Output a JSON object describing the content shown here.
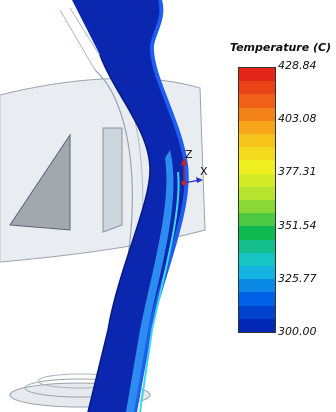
{
  "legend": {
    "title": "Temperature (C)",
    "ticks": [
      "428.84",
      "403.08",
      "377.31",
      "351.54",
      "325.77",
      "300.00"
    ],
    "min": 300.0,
    "max": 428.84,
    "band_count": 20,
    "colormap": [
      "#0018a8",
      "#0060e8",
      "#18c8e0",
      "#10b850",
      "#a8e030",
      "#f0f020",
      "#f8b818",
      "#f06018",
      "#e01818"
    ]
  },
  "triad": {
    "z_label": "Z",
    "x_label": "X"
  }
}
